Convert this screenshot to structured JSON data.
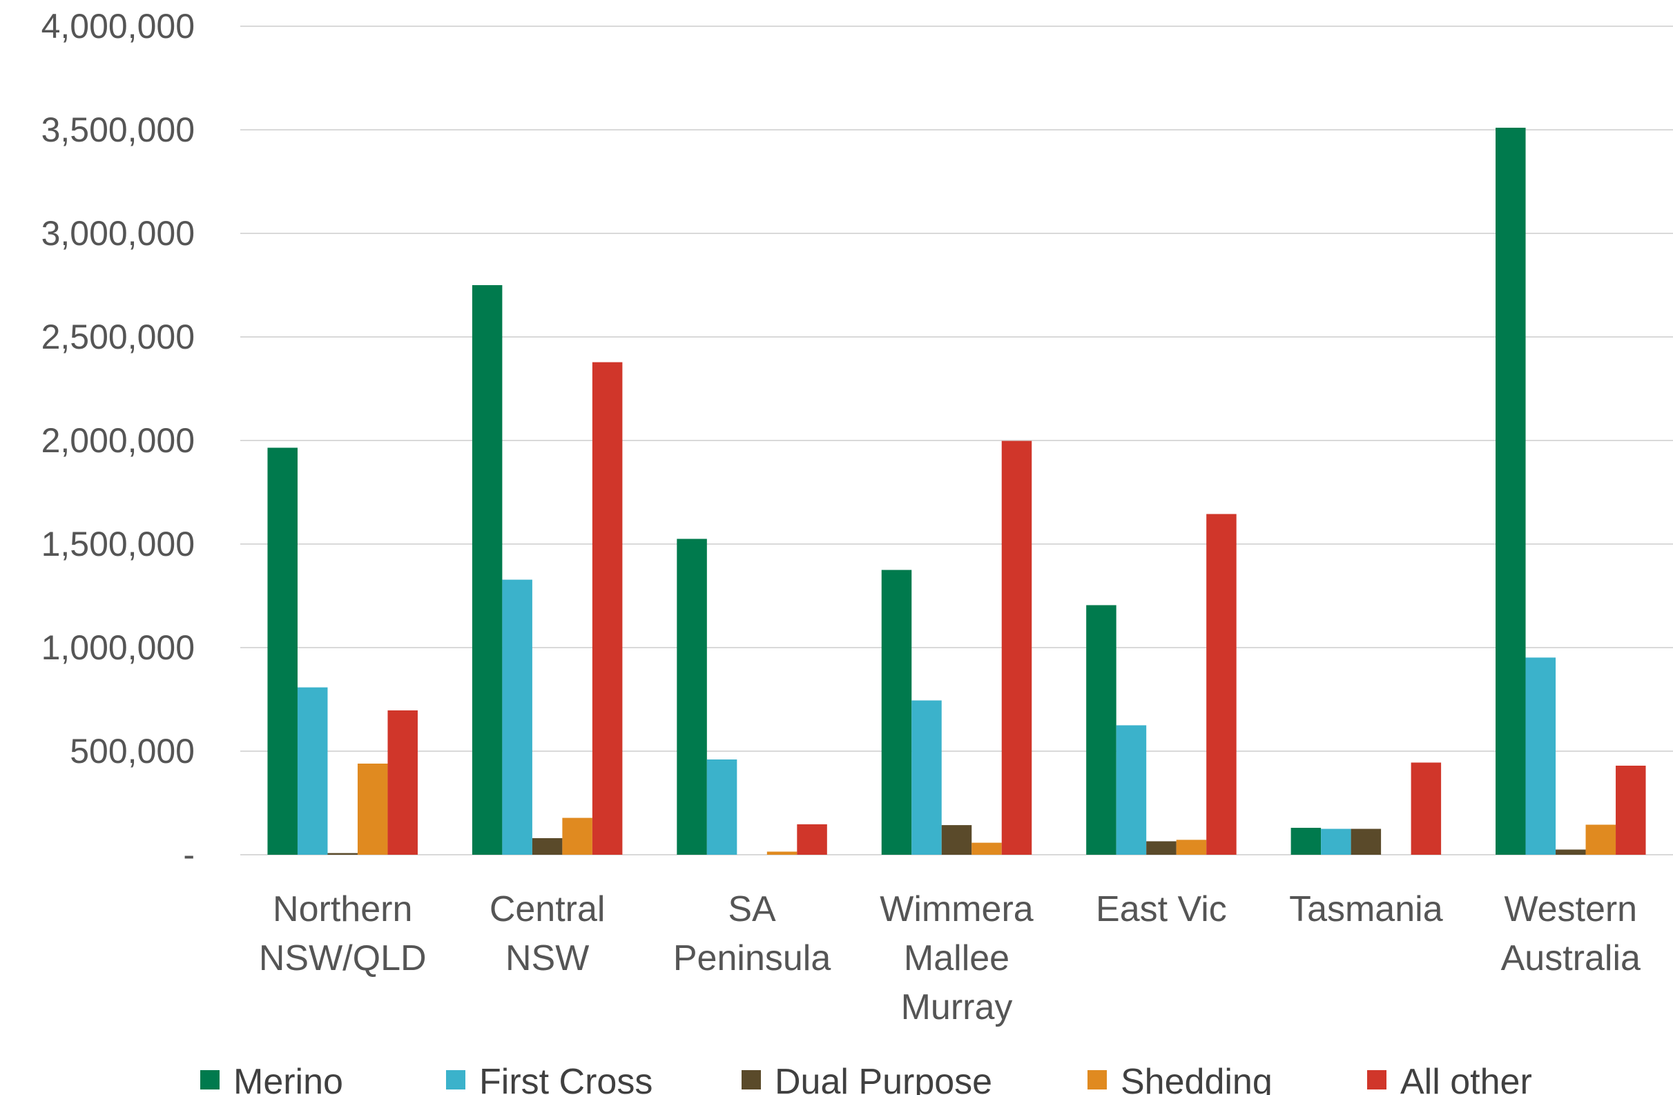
{
  "chart_data": {
    "type": "bar",
    "categories": [
      [
        "Northern",
        "NSW/QLD"
      ],
      [
        "Central",
        "NSW"
      ],
      [
        "SA",
        "Peninsula"
      ],
      [
        "Wimmera",
        "Mallee",
        "Murray"
      ],
      [
        "East Vic"
      ],
      [
        "Tasmania"
      ],
      [
        "Western",
        "Australia"
      ]
    ],
    "series": [
      {
        "name": "Merino",
        "color": "#007A4D",
        "values": [
          1965000,
          2750000,
          1525000,
          1375000,
          1205000,
          130000,
          3510000
        ]
      },
      {
        "name": "First Cross",
        "color": "#3BB2CB",
        "values": [
          808000,
          1328000,
          460000,
          745000,
          625000,
          125000,
          952000
        ]
      },
      {
        "name": "Dual Purpose",
        "color": "#5A4A2A",
        "values": [
          8000,
          80000,
          0,
          143000,
          65000,
          125000,
          25000
        ]
      },
      {
        "name": "Shedding",
        "color": "#E08A20",
        "values": [
          440000,
          178000,
          15000,
          58000,
          72000,
          0,
          145000
        ]
      },
      {
        "name": "All other",
        "color": "#D0362A",
        "values": [
          697000,
          2378000,
          147000,
          1998000,
          1645000,
          445000,
          430000
        ]
      }
    ],
    "yticks": [
      "-",
      "500,000",
      "1,000,000",
      "1,500,000",
      "2,000,000",
      "2,500,000",
      "3,000,000",
      "3,500,000",
      "4,000,000"
    ],
    "ylim": [
      0,
      4000000
    ],
    "grid": true,
    "legend_position": "bottom"
  }
}
